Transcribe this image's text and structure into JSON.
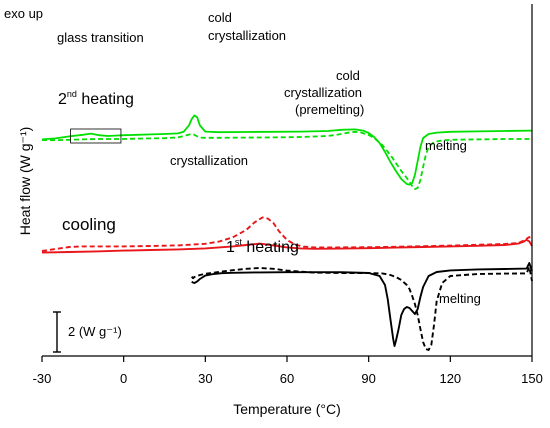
{
  "chart_data": {
    "type": "line",
    "xlabel": "Temperature (°C)",
    "ylabel": "Heat flow (W g⁻¹)",
    "xlim": [
      -30,
      150
    ],
    "xticks": [
      -30,
      0,
      30,
      60,
      90,
      120,
      150
    ],
    "y_scale": {
      "label": "2 (W g⁻¹)",
      "value": 2
    },
    "grid": false,
    "corner_label": "exo up",
    "colors": {
      "second_heating": "#00e000",
      "cooling": "#e8161b",
      "first_heating": "#000000"
    },
    "series": [
      {
        "group": "second_heating",
        "style": "solid",
        "x": [
          -30,
          -25,
          -20,
          -15,
          -12,
          -9,
          -6,
          -3,
          0,
          5,
          10,
          15,
          20,
          22,
          24,
          25,
          26,
          27,
          28,
          30,
          35,
          45,
          55,
          65,
          75,
          80,
          85,
          88,
          90,
          92,
          94,
          96,
          98,
          100,
          102,
          104,
          105,
          106,
          107,
          108,
          109,
          110,
          112,
          115,
          120,
          130,
          140,
          150
        ],
        "y": [
          10.78,
          10.83,
          10.93,
          11.01,
          11.07,
          10.99,
          10.95,
          10.97,
          10.99,
          11.01,
          11.03,
          11.05,
          11.08,
          11.16,
          11.48,
          11.8,
          11.98,
          11.88,
          11.48,
          11.17,
          11.14,
          11.15,
          11.16,
          11.17,
          11.2,
          11.26,
          11.28,
          11.22,
          11.1,
          10.9,
          10.6,
          10.15,
          9.65,
          9.2,
          8.8,
          8.55,
          8.52,
          8.6,
          9.0,
          9.7,
          10.4,
          10.85,
          11.05,
          11.12,
          11.16,
          11.18,
          11.2,
          11.22
        ]
      },
      {
        "group": "second_heating",
        "style": "dashed",
        "x": [
          -30,
          -25,
          -20,
          -15,
          -10,
          -5,
          0,
          5,
          10,
          15,
          20,
          22,
          24,
          25,
          26,
          27,
          28,
          30,
          35,
          45,
          55,
          65,
          75,
          80,
          83,
          85,
          87,
          90,
          92,
          95,
          98,
          100,
          102,
          104,
          106,
          107,
          108,
          109,
          110,
          111,
          112,
          114,
          117,
          120,
          130,
          140,
          150
        ],
        "y": [
          10.75,
          10.74,
          10.76,
          10.78,
          10.8,
          10.8,
          10.8,
          10.82,
          10.83,
          10.84,
          10.88,
          10.95,
          11.02,
          11.05,
          11.01,
          10.93,
          10.87,
          10.86,
          10.86,
          10.87,
          10.88,
          10.9,
          10.95,
          11.05,
          11.13,
          11.16,
          11.13,
          11.0,
          10.85,
          10.5,
          10.0,
          9.6,
          9.2,
          8.85,
          8.45,
          8.3,
          8.35,
          8.75,
          9.4,
          10.0,
          10.4,
          10.65,
          10.73,
          10.76,
          10.78,
          10.8,
          10.8
        ]
      },
      {
        "group": "cooling",
        "style": "solid",
        "x": [
          -30,
          -20,
          -10,
          0,
          10,
          20,
          30,
          40,
          45,
          50,
          55,
          60,
          65,
          70,
          80,
          90,
          100,
          110,
          120,
          130,
          140,
          145,
          147,
          148,
          149,
          150
        ],
        "y": [
          5.12,
          5.15,
          5.18,
          5.22,
          5.25,
          5.28,
          5.33,
          5.43,
          5.5,
          5.57,
          5.48,
          5.38,
          5.33,
          5.31,
          5.32,
          5.34,
          5.37,
          5.4,
          5.43,
          5.46,
          5.5,
          5.57,
          5.67,
          5.76,
          5.68,
          5.45
        ]
      },
      {
        "group": "cooling",
        "style": "dashed",
        "x": [
          -30,
          -25,
          -20,
          -15,
          -10,
          0,
          10,
          20,
          30,
          35,
          40,
          45,
          48,
          51,
          53,
          55,
          57,
          60,
          63,
          66,
          70,
          80,
          90,
          100,
          110,
          120,
          130,
          140,
          145,
          147,
          149,
          150
        ],
        "y": [
          5.2,
          5.3,
          5.4,
          5.43,
          5.43,
          5.43,
          5.45,
          5.48,
          5.56,
          5.67,
          5.88,
          6.25,
          6.62,
          6.88,
          6.82,
          6.6,
          6.2,
          5.75,
          5.52,
          5.42,
          5.38,
          5.38,
          5.39,
          5.41,
          5.44,
          5.47,
          5.51,
          5.55,
          5.6,
          5.72,
          5.9,
          5.7
        ]
      },
      {
        "group": "first_heating",
        "style": "solid",
        "x": [
          25,
          25.5,
          26,
          27,
          28,
          30,
          33,
          36,
          40,
          50,
          60,
          70,
          80,
          90,
          94,
          96,
          97,
          98,
          99,
          99.5,
          100,
          101,
          102,
          103,
          104,
          105,
          106,
          107,
          108,
          109,
          110,
          112,
          115,
          120,
          130,
          140,
          148,
          149,
          150
        ],
        "y": [
          3.67,
          3.62,
          3.6,
          3.68,
          3.8,
          3.97,
          4.05,
          4.09,
          4.11,
          4.13,
          4.14,
          4.14,
          4.14,
          4.1,
          3.95,
          3.5,
          2.8,
          1.8,
          0.8,
          0.45,
          0.7,
          1.3,
          2.0,
          2.3,
          2.4,
          2.35,
          2.2,
          2.05,
          2.3,
          2.9,
          3.4,
          3.95,
          4.15,
          4.23,
          4.28,
          4.3,
          4.32,
          4.6,
          4.2
        ]
      },
      {
        "group": "first_heating",
        "style": "dashed",
        "x": [
          25,
          25.5,
          26,
          28,
          30,
          35,
          40,
          45,
          50,
          55,
          60,
          70,
          80,
          90,
          95,
          98,
          100,
          102,
          104,
          105,
          106,
          107,
          108,
          109,
          110,
          111,
          112,
          113,
          114,
          115,
          117,
          120,
          130,
          140,
          148,
          149,
          150
        ],
        "y": [
          3.92,
          3.84,
          3.9,
          4.0,
          4.06,
          4.15,
          4.24,
          4.31,
          4.35,
          4.31,
          4.22,
          4.12,
          4.1,
          4.1,
          4.08,
          4.0,
          3.9,
          3.75,
          3.5,
          3.3,
          2.95,
          2.55,
          2.0,
          1.3,
          0.65,
          0.3,
          0.25,
          0.5,
          1.5,
          2.7,
          3.6,
          3.95,
          4.05,
          4.07,
          4.08,
          4.4,
          3.7
        ]
      }
    ],
    "box_inset": {
      "x": [
        -19.5,
        -1
      ],
      "y": [
        10.6,
        11.3
      ]
    },
    "annotations": {
      "glass_transition": "glass transition",
      "second_heating_base": "2",
      "second_heating_sup": "nd",
      "second_heating_rest": " heating",
      "cold_crystallization_1": "cold",
      "cold_crystallization_2": "crystallization",
      "cold_premelting_1": "cold",
      "cold_premelting_2": "crystallization",
      "cold_premelting_3": "(premelting)",
      "melting_top": "melting",
      "crystallization": "crystallization",
      "cooling": "cooling",
      "first_heating_base": "1",
      "first_heating_sup": "st",
      "first_heating_rest": " heating",
      "melting_bottom": "melting"
    }
  }
}
